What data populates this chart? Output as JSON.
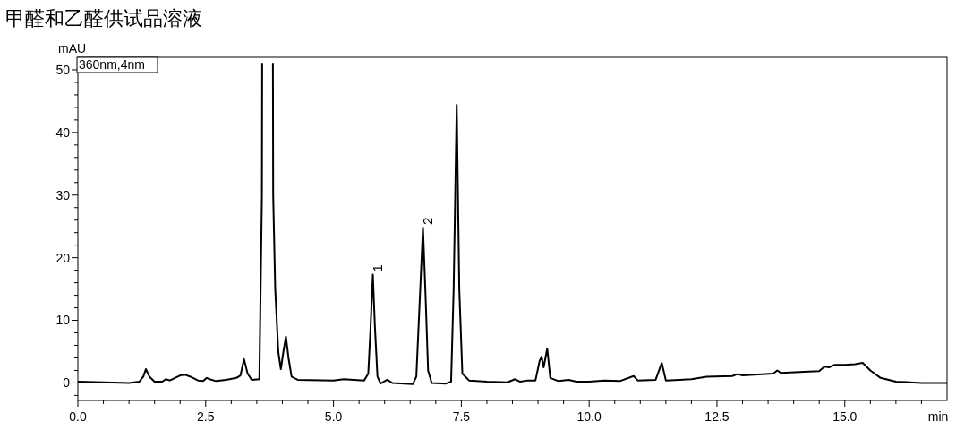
{
  "chart_data": {
    "type": "line",
    "title": "甲醛和乙醛供试品溶液",
    "xlabel": "min",
    "ylabel": "mAU",
    "xlim": [
      0,
      17
    ],
    "ylim": [
      -2.8,
      52
    ],
    "xticks": [
      {
        "value": 0,
        "label": "0.0"
      },
      {
        "value": 0.5,
        "label": null
      },
      {
        "value": 1,
        "label": null
      },
      {
        "value": 1.5,
        "label": null
      },
      {
        "value": 2,
        "label": null
      },
      {
        "value": 2.5,
        "label": "2.5"
      },
      {
        "value": 3,
        "label": null
      },
      {
        "value": 3.5,
        "label": null
      },
      {
        "value": 4,
        "label": null
      },
      {
        "value": 4.5,
        "label": null
      },
      {
        "value": 5,
        "label": "5.0"
      },
      {
        "value": 5.5,
        "label": null
      },
      {
        "value": 6,
        "label": null
      },
      {
        "value": 6.5,
        "label": null
      },
      {
        "value": 7,
        "label": null
      },
      {
        "value": 7.5,
        "label": "7.5"
      },
      {
        "value": 8,
        "label": null
      },
      {
        "value": 8.5,
        "label": null
      },
      {
        "value": 9,
        "label": null
      },
      {
        "value": 9.5,
        "label": null
      },
      {
        "value": 10,
        "label": "10.0"
      },
      {
        "value": 10.5,
        "label": null
      },
      {
        "value": 11,
        "label": null
      },
      {
        "value": 11.5,
        "label": null
      },
      {
        "value": 12,
        "label": null
      },
      {
        "value": 12.5,
        "label": "12.5"
      },
      {
        "value": 13,
        "label": null
      },
      {
        "value": 13.5,
        "label": null
      },
      {
        "value": 14,
        "label": null
      },
      {
        "value": 14.5,
        "label": null
      },
      {
        "value": 15,
        "label": "15.0"
      },
      {
        "value": 15.5,
        "label": null
      },
      {
        "value": 16,
        "label": null
      },
      {
        "value": 16.5,
        "label": null
      }
    ],
    "yticks": [
      {
        "value": -2,
        "label": null
      },
      0,
      {
        "value": 2,
        "label": null
      },
      {
        "value": 4,
        "label": null
      },
      {
        "value": 6,
        "label": null
      },
      {
        "value": 8,
        "label": null
      },
      10,
      {
        "value": 12,
        "label": null
      },
      {
        "value": 14,
        "label": null
      },
      {
        "value": 16,
        "label": null
      },
      {
        "value": 18,
        "label": null
      },
      20,
      {
        "value": 22,
        "label": null
      },
      {
        "value": 24,
        "label": null
      },
      {
        "value": 26,
        "label": null
      },
      {
        "value": 28,
        "label": null
      },
      30,
      {
        "value": 32,
        "label": null
      },
      {
        "value": 34,
        "label": null
      },
      {
        "value": 36,
        "label": null
      },
      {
        "value": 38,
        "label": null
      },
      40,
      {
        "value": 42,
        "label": null
      },
      {
        "value": 44,
        "label": null
      },
      {
        "value": 46,
        "label": null
      },
      {
        "value": 48,
        "label": null
      },
      50
    ],
    "grid": false,
    "marker": "none",
    "line_style": "solid",
    "annotations": [
      "360nm,4nm",
      {
        "text": "1",
        "x": 5.77,
        "y": 17.3
      },
      {
        "text": "2",
        "x": 6.75,
        "y": 24.8
      }
    ],
    "series": [
      {
        "color": "#000000",
        "x": [
          0,
          0.5,
          1.0,
          1.2,
          1.28,
          1.33,
          1.4,
          1.5,
          1.65,
          1.72,
          1.8,
          1.9,
          2.0,
          2.1,
          2.2,
          2.35,
          2.45,
          2.52,
          2.58,
          2.7,
          2.9,
          3.1,
          3.18,
          3.25,
          3.32,
          3.4,
          3.55,
          3.6,
          3.605,
          3.71,
          3.815,
          3.82,
          3.86,
          3.92,
          3.97,
          4.02,
          4.07,
          4.12,
          4.18,
          4.3,
          5.0,
          5.2,
          5.6,
          5.68,
          5.72,
          5.77,
          5.81,
          5.86,
          5.92,
          6.05,
          6.15,
          6.55,
          6.62,
          6.68,
          6.75,
          6.8,
          6.85,
          6.92,
          7.2,
          7.3,
          7.35,
          7.41,
          7.46,
          7.52,
          7.58,
          7.65,
          8.0,
          8.4,
          8.55,
          8.65,
          8.8,
          8.95,
          9.03,
          9.07,
          9.11,
          9.18,
          9.24,
          9.4,
          9.6,
          9.75,
          10.0,
          10.3,
          10.6,
          10.87,
          10.95,
          11.3,
          11.42,
          11.5,
          12.0,
          12.3,
          12.8,
          12.9,
          13.0,
          13.6,
          13.68,
          13.75,
          14.3,
          14.5,
          14.6,
          14.7,
          14.8,
          15.0,
          15.2,
          15.35,
          15.5,
          15.7,
          16.0,
          16.5,
          17.0
        ],
        "values": [
          0.2,
          0.1,
          0.0,
          0.2,
          1.0,
          2.2,
          1.0,
          0.2,
          0.2,
          0.6,
          0.4,
          0.8,
          1.2,
          1.3,
          1.0,
          0.4,
          0.3,
          0.8,
          0.6,
          0.3,
          0.5,
          0.8,
          1.2,
          3.8,
          1.5,
          0.5,
          0.6,
          30,
          51,
          null,
          51,
          30,
          15,
          5,
          2.2,
          5,
          7.4,
          4,
          1.0,
          0.5,
          0.4,
          0.6,
          0.4,
          1.5,
          8,
          17.3,
          9,
          1,
          -0.1,
          0.5,
          0,
          -0.2,
          1,
          12,
          24.8,
          14,
          2,
          0,
          -0.1,
          0.2,
          15,
          44.4,
          15,
          1.5,
          1.0,
          0.4,
          0.2,
          0.1,
          0.6,
          0.2,
          0.4,
          0.4,
          3.5,
          4.2,
          2.5,
          5.5,
          0.8,
          0.3,
          0.5,
          0.2,
          0.2,
          0.4,
          0.3,
          1.1,
          0.4,
          0.5,
          3.2,
          0.4,
          0.6,
          1.0,
          1.1,
          1.4,
          1.2,
          1.5,
          2.0,
          1.6,
          1.8,
          1.9,
          2.6,
          2.5,
          2.9,
          2.9,
          3.0,
          3.2,
          2.0,
          0.8,
          0.2,
          0.0,
          0.0
        ]
      }
    ]
  }
}
